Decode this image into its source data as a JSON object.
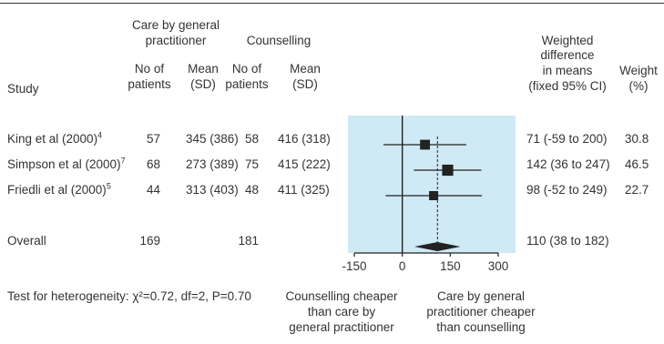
{
  "headers": {
    "study": "Study",
    "group1_title": "Care by general practitioner",
    "group2_title": "Counselling",
    "no_patients": "No of patients",
    "mean_sd": "Mean (SD)",
    "diff_title": "Weighted difference in means (fixed 95% CI)",
    "weight_title": "Weight (%)"
  },
  "rows": [
    {
      "study": "King et al (2000)",
      "ref": "4",
      "gp_n": "57",
      "gp_mean": "345 (386)",
      "c_n": "58",
      "c_mean": "416 (318)",
      "diff_text": "71 (-59 to 200)",
      "weight": "30.8"
    },
    {
      "study": "Simpson et al (2000)",
      "ref": "7",
      "gp_n": "68",
      "gp_mean": "273 (389)",
      "c_n": "75",
      "c_mean": "415 (222)",
      "diff_text": "142 (36 to 247)",
      "weight": "46.5"
    },
    {
      "study": "Friedli et al (2000)",
      "ref": "5",
      "gp_n": "44",
      "gp_mean": "313 (403)",
      "c_n": "48",
      "c_mean": "411 (325)",
      "diff_text": "98 (-52 to 249)",
      "weight": "22.7"
    }
  ],
  "overall": {
    "label": "Overall",
    "gp_n": "169",
    "c_n": "181",
    "diff_text": "110 (38 to 182)"
  },
  "heterogeneity": "Test for heterogeneity: χ²=0.72, df=2, P=0.70",
  "favours_left": [
    "Counselling cheaper",
    "than care by",
    "general practitioner"
  ],
  "favours_right": [
    "Care by general",
    "practitioner cheaper",
    "than counselling"
  ],
  "colors": {
    "panel": "#cfe9f5",
    "ink": "#222222",
    "text": "#333333"
  },
  "chart_data": {
    "type": "forest",
    "xlim": [
      -150,
      300
    ],
    "xticks": [
      "-150",
      "0",
      "150",
      "300"
    ],
    "tick_values": [
      -150,
      0,
      150,
      300
    ],
    "null_value": 0,
    "studies": [
      {
        "name": "King et al (2000)",
        "estimate": 71,
        "ci": [
          -59,
          200
        ],
        "weight": 30.8
      },
      {
        "name": "Simpson et al (2000)",
        "estimate": 142,
        "ci": [
          36,
          247
        ],
        "weight": 46.5
      },
      {
        "name": "Friedli et al (2000)",
        "estimate": 98,
        "ci": [
          -52,
          249
        ],
        "weight": 22.7
      }
    ],
    "overall": {
      "estimate": 110,
      "ci": [
        38,
        182
      ]
    }
  }
}
